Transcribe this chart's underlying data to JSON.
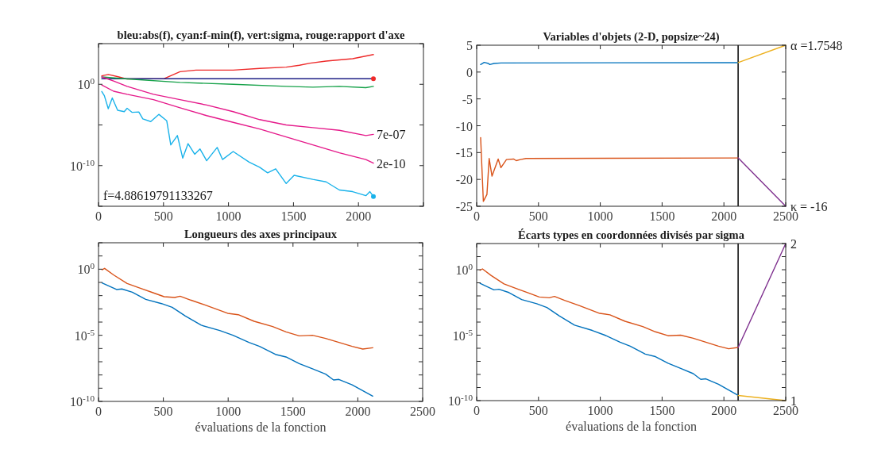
{
  "chart_data": [
    {
      "type": "line",
      "title": "bleu:abs(f), cyan:f-min(f), vert:sigma, rouge:rapport d'axe",
      "log": true,
      "xlim": [
        0,
        2500
      ],
      "xticks": [
        0,
        500,
        1000,
        1500,
        2000,
        {
          "value": 2500,
          "label": null
        }
      ],
      "ylim": [
        1e-15,
        100000
      ],
      "yticks": [
        {
          "value": 1e-15,
          "label": null
        },
        {
          "value": 1e-10,
          "label": "10$^{-10}$"
        },
        {
          "value": 1e-05,
          "label": null
        },
        {
          "value": 1,
          "label": "10$^{0}$"
        },
        {
          "value": 100000,
          "label": null
        }
      ],
      "series": [
        {
          "color": "#ee2a2a",
          "x": [
            25,
            75,
            157,
            220,
            505,
            627,
            750,
            1036,
            1240,
            1444,
            1546,
            1628,
            1751,
            1853,
            1955,
            2115
          ],
          "values": [
            11,
            16,
            8,
            4.5,
            5,
            35,
            56,
            56,
            89,
            130,
            220,
            400,
            710,
            1000,
            1400,
            4500
          ]
        },
        {
          "color": "#1c1f85",
          "x": [
            25,
            2115
          ],
          "values": [
            4.886,
            4.886
          ]
        },
        {
          "color": "#17a24a",
          "x": [
            25,
            220,
            627,
            1036,
            1444,
            1649,
            1853,
            2057,
            2115
          ],
          "values": [
            8,
            4.5,
            1.7,
            1,
            0.55,
            0.44,
            0.55,
            0.38,
            0.55
          ]
        },
        {
          "color": "#e5198a",
          "x": [
            25,
            116,
            220,
            423,
            627,
            832,
            1036,
            1240,
            1444,
            1649,
            1853,
            2057,
            2115
          ],
          "values": [
            8,
            2.5,
            0.55,
            0.058,
            0.013,
            0.0028,
            0.00043,
            4.5e-05,
            1e-05,
            4.7e-06,
            2.2e-06,
            5e-07,
            7e-07
          ],
          "value_labels": [
            null,
            null,
            null,
            null,
            null,
            null,
            null,
            null,
            null,
            null,
            null,
            null,
            "7e-07"
          ]
        },
        {
          "color": "#e5198a",
          "x": [
            25,
            116,
            220,
            423,
            627,
            832,
            1036,
            1240,
            1444,
            1649,
            1853,
            2057,
            2115
          ],
          "values": [
            0.8,
            0.14,
            0.058,
            0.013,
            0.0013,
            0.00014,
            2.1e-05,
            3.2e-06,
            3.4e-07,
            3.5e-08,
            3.7e-09,
            5.6e-10,
            2e-10
          ],
          "value_labels": [
            null,
            null,
            null,
            null,
            null,
            null,
            null,
            null,
            null,
            null,
            null,
            null,
            "2e-10"
          ]
        },
        {
          "color": "#19b2ea",
          "x": [
            25,
            45,
            75,
            106,
            147,
            198,
            220,
            259,
            310,
            341,
            402,
            464,
            525,
            556,
            607,
            648,
            689,
            740,
            781,
            832,
            913,
            954,
            1036,
            1159,
            1240,
            1301,
            1363,
            1444,
            1505,
            1649,
            1751,
            1853,
            1955,
            2057,
            2088,
            2115
          ],
          "values": [
            0.13,
            0.04,
            0.001,
            0.021,
            0.00063,
            0.00043,
            0.0011,
            0.00035,
            0.0004,
            5.6e-05,
            2.6e-05,
            0.0002,
            3.2e-05,
            3.5e-08,
            5e-07,
            8.3e-10,
            5e-08,
            2.5e-09,
            1.1e-08,
            4e-10,
            1.7e-08,
            5.6e-10,
            5.4e-09,
            2.7e-10,
            6.3e-11,
            1.3e-11,
            4e-11,
            6.3e-13,
            6.3e-12,
            2e-12,
            1e-12,
            1e-13,
            6.3e-14,
            2e-14,
            6.3e-14,
            1.6e-14
          ]
        },
        {
          "type": "scatter",
          "marker": "circle",
          "color": "#ee2a2a",
          "x": [
            2115
          ],
          "values": [
            4.886
          ]
        },
        {
          "type": "scatter",
          "marker": "circle",
          "color": "#19b2ea",
          "x": [
            2115
          ],
          "values": [
            1.6e-14
          ]
        }
      ],
      "annotations": [
        "f=4.88619791133267"
      ]
    },
    {
      "type": "line",
      "title": "Variables d'objets (2-D, popsize~24)",
      "xlim": [
        0,
        2500
      ],
      "xticks": [
        0,
        500,
        1000,
        1500,
        2000,
        2500
      ],
      "ylim": [
        -25,
        5
      ],
      "yticks": [
        -25,
        -20,
        -15,
        -10,
        -5,
        0,
        5
      ],
      "series": [
        {
          "color": "#0072bd",
          "x": [
            32,
            61,
            95,
            106,
            140,
            196,
            2115
          ],
          "values": [
            1.4,
            1.8,
            1.6,
            1.4,
            1.6,
            1.7,
            1.7548
          ]
        },
        {
          "color": "#d95319",
          "x": [
            32,
            54,
            83,
            101,
            124,
            174,
            196,
            241,
            298,
            320,
            354,
            399,
            2115
          ],
          "values": [
            -12.2,
            -24.1,
            -22.8,
            -16.1,
            -19.4,
            -16.2,
            -17.8,
            -16.3,
            -16.2,
            -16.5,
            -16.3,
            -16.1,
            -16
          ]
        },
        {
          "color": "#edb120",
          "x": [
            2115,
            2500
          ],
          "values": [
            1.7548,
            5
          ]
        },
        {
          "color": "#7e2f8e",
          "x": [
            2115,
            2500
          ],
          "values": [
            -16,
            -25
          ]
        }
      ],
      "ref_lines": [
        {
          "axis": "x",
          "value": 2115,
          "color": "#000000"
        }
      ],
      "annotations": [
        "α =1.7548",
        "κ = -16"
      ]
    },
    {
      "type": "line",
      "title": "Longueurs des axes principaux",
      "xlabel": "évaluations de la fonction",
      "log": true,
      "xlim": [
        0,
        2500
      ],
      "xticks": [
        0,
        500,
        1000,
        1500,
        2000,
        2500
      ],
      "ylim": [
        1e-10,
        100
      ],
      "yticks": [
        {
          "value": 1e-10,
          "label": "10$^{-10}$"
        },
        {
          "value": 1e-09,
          "label": null
        },
        {
          "value": 1e-08,
          "label": null
        },
        {
          "value": 1e-07,
          "label": null
        },
        {
          "value": 1e-06,
          "label": null
        },
        {
          "value": 1e-05,
          "label": "10$^{-5}$"
        },
        {
          "value": 0.0001,
          "label": null
        },
        {
          "value": 0.001,
          "label": null
        },
        {
          "value": 0.01,
          "label": null
        },
        {
          "value": 0.1,
          "label": null
        },
        {
          "value": 1,
          "label": "10$^{0}$"
        },
        {
          "value": 10,
          "label": null
        },
        {
          "value": 100,
          "label": null
        }
      ],
      "series": [
        {
          "color": "#0072bd",
          "x": [
            27,
            139,
            180,
            261,
            364,
            486,
            568,
            670,
            792,
            935,
            1037,
            1160,
            1242,
            1364,
            1446,
            1548,
            1650,
            1752,
            1813,
            1854,
            1956,
            2115
          ],
          "values": [
            0.091,
            0.029,
            0.032,
            0.018,
            0.0052,
            0.0025,
            0.0013,
            0.00029,
            5.8e-05,
            2.3e-05,
            1e-05,
            2.9e-06,
            1.45e-06,
            3.6e-07,
            2.3e-07,
            7.2e-08,
            2.9e-08,
            1.15e-08,
            4.2e-09,
            4.6e-09,
            1.8e-09,
            2.5e-10
          ]
        },
        {
          "color": "#d95319",
          "x": [
            27,
            47,
            118,
            221,
            323,
            425,
            506,
            588,
            629,
            711,
            833,
            996,
            1078,
            1200,
            1343,
            1446,
            1548,
            1650,
            1752,
            1854,
            1956,
            2038,
            2115
          ],
          "values": [
            0.91,
            1.15,
            0.36,
            0.083,
            0.036,
            0.016,
            0.0083,
            0.0072,
            0.0091,
            0.0046,
            0.0018,
            0.00046,
            0.00036,
            0.000115,
            4.6e-05,
            1.8e-05,
            9.1e-06,
            1e-05,
            5.8e-06,
            2.9e-06,
            1.45e-06,
            9.1e-07,
            1.15e-06
          ]
        }
      ]
    },
    {
      "type": "line",
      "title": "Écarts types en coordonnées divisés par sigma",
      "xlabel": "évaluations de la fonction",
      "log": true,
      "xlim": [
        0,
        2500
      ],
      "xticks": [
        0,
        500,
        1000,
        1500,
        2000,
        2500
      ],
      "ylim": [
        1e-10,
        100
      ],
      "yticks": [
        {
          "value": 1e-10,
          "label": "10$^{-10}$"
        },
        {
          "value": 1e-09,
          "label": null
        },
        {
          "value": 1e-08,
          "label": null
        },
        {
          "value": 1e-07,
          "label": null
        },
        {
          "value": 1e-06,
          "label": null
        },
        {
          "value": 1e-05,
          "label": "10$^{-5}$"
        },
        {
          "value": 0.0001,
          "label": null
        },
        {
          "value": 0.001,
          "label": null
        },
        {
          "value": 0.01,
          "label": null
        },
        {
          "value": 0.1,
          "label": null
        },
        {
          "value": 1,
          "label": "10$^{0}$"
        },
        {
          "value": 10,
          "label": null
        },
        {
          "value": 100,
          "label": null
        }
      ],
      "series": [
        {
          "color": "#0072bd",
          "x": [
            27,
            139,
            180,
            261,
            364,
            486,
            568,
            670,
            792,
            935,
            1037,
            1160,
            1242,
            1364,
            1446,
            1548,
            1650,
            1752,
            1813,
            1854,
            1956,
            2115
          ],
          "values": [
            0.091,
            0.029,
            0.032,
            0.018,
            0.0052,
            0.0025,
            0.0013,
            0.00029,
            5.8e-05,
            2.3e-05,
            1e-05,
            2.9e-06,
            1.45e-06,
            3.6e-07,
            2.3e-07,
            7.2e-08,
            2.9e-08,
            1.15e-08,
            4.2e-09,
            4.6e-09,
            1.8e-09,
            2.5e-10
          ]
        },
        {
          "color": "#d95319",
          "x": [
            27,
            47,
            118,
            221,
            323,
            425,
            506,
            588,
            629,
            711,
            833,
            996,
            1078,
            1200,
            1343,
            1446,
            1548,
            1650,
            1752,
            1854,
            1956,
            2038,
            2115
          ],
          "values": [
            0.91,
            1.15,
            0.36,
            0.083,
            0.036,
            0.016,
            0.0083,
            0.0072,
            0.0091,
            0.0046,
            0.0018,
            0.00046,
            0.00036,
            0.000115,
            4.6e-05,
            1.8e-05,
            9.1e-06,
            1e-05,
            5.8e-06,
            2.9e-06,
            1.45e-06,
            9.1e-07,
            1.15e-06
          ]
        },
        {
          "color": "#7e2f8e",
          "x": [
            2115,
            2500
          ],
          "values": [
            1.15e-06,
            100
          ]
        },
        {
          "color": "#edb120",
          "x": [
            2115,
            2500
          ],
          "values": [
            2.5e-10,
            1e-10
          ]
        }
      ],
      "ref_lines": [
        {
          "axis": "x",
          "value": 2115,
          "color": "#000000"
        }
      ],
      "annotations": [
        "2",
        "1"
      ]
    }
  ]
}
